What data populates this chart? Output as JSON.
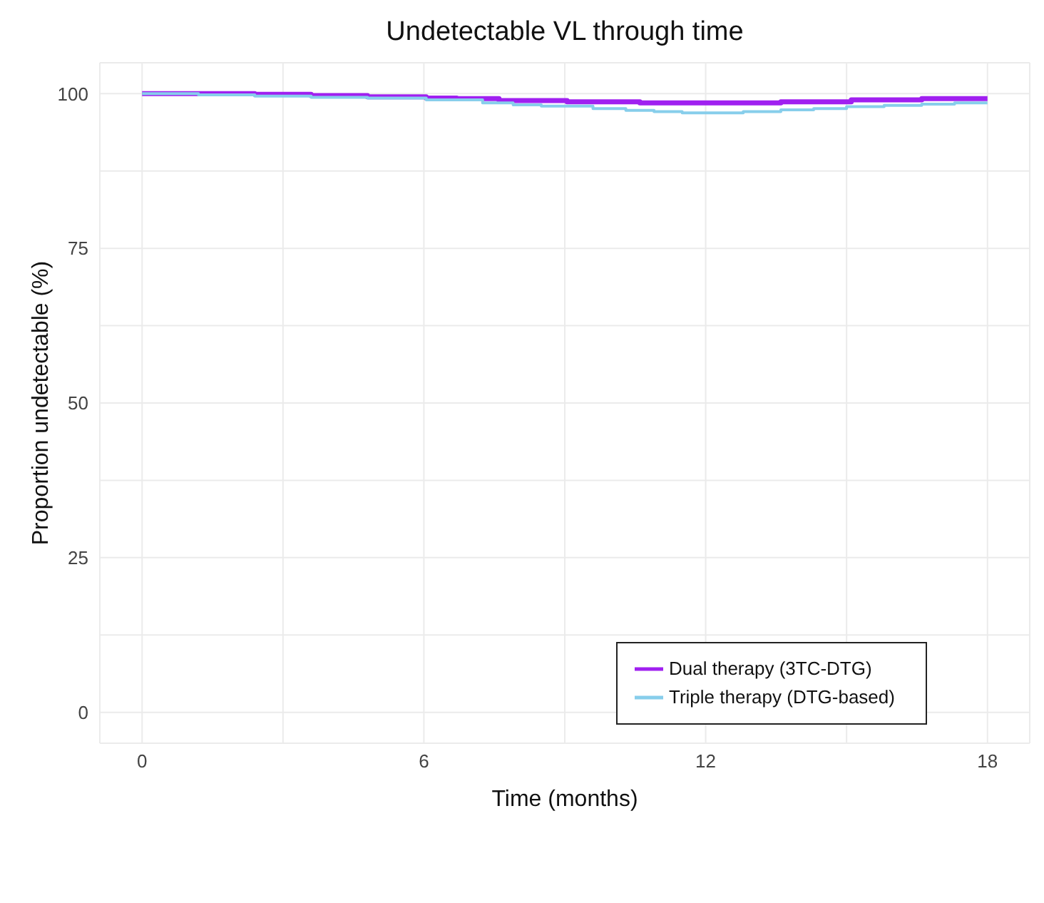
{
  "chart_data": {
    "type": "step",
    "title": "Undetectable VL through time",
    "xlabel": "Time (months)",
    "ylabel": "Proportion undetectable (%)",
    "xlim": [
      -0.9,
      18.9
    ],
    "xticks": [
      0,
      {
        "value": 3,
        "label": null
      },
      6,
      {
        "value": 9,
        "label": null
      },
      12,
      {
        "value": 15,
        "label": null
      },
      18
    ],
    "ylim": [
      -5,
      105
    ],
    "yticks": [
      0,
      {
        "value": 12.5,
        "label": null
      },
      25,
      {
        "value": 37.5,
        "label": null
      },
      50,
      {
        "value": 62.5,
        "label": null
      },
      75,
      {
        "value": 87.5,
        "label": null
      },
      100
    ],
    "grid": true,
    "legend": "bottom right",
    "series": [
      {
        "name": "Dual therapy (3TC-DTG)",
        "color": "#a020f0",
        "x": [
          0,
          1.2,
          2.4,
          3.6,
          4.8,
          6.05,
          6.7,
          7.6,
          9.05,
          10.6,
          13.6,
          15.1,
          16.6,
          18
        ],
        "values": [
          100,
          100,
          99.9,
          99.7,
          99.5,
          99.3,
          99.2,
          98.9,
          98.7,
          98.5,
          98.7,
          99.0,
          99.2,
          99.2
        ]
      },
      {
        "name": "Triple therapy (DTG-based)",
        "color": "#87ceeb",
        "x": [
          0,
          1.2,
          2.4,
          3.6,
          4.8,
          6.05,
          7.25,
          7.9,
          8.5,
          9.6,
          10.3,
          10.9,
          11.5,
          12.8,
          13.6,
          14.3,
          15.0,
          15.8,
          16.6,
          17.3,
          18
        ],
        "values": [
          100,
          99.8,
          99.6,
          99.4,
          99.3,
          99.0,
          98.5,
          98.2,
          98.0,
          97.6,
          97.3,
          97.1,
          96.9,
          97.1,
          97.4,
          97.6,
          97.9,
          98.1,
          98.3,
          98.5,
          98.5
        ]
      }
    ]
  }
}
